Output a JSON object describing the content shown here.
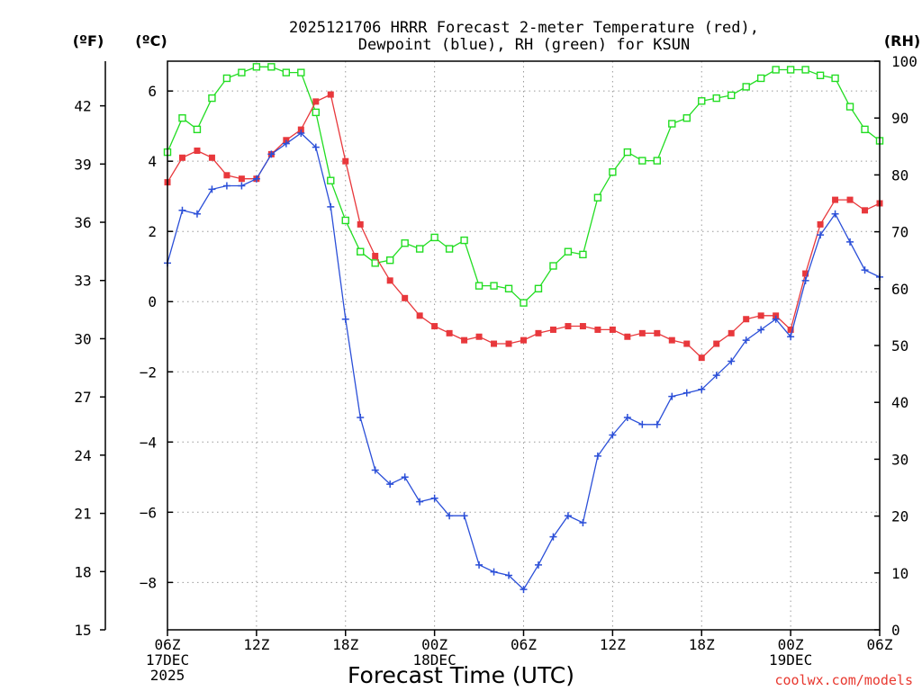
{
  "chart_data": {
    "type": "line",
    "title": "2025121706 HRRR Forecast 2-meter Temperature (red),",
    "subtitle": "Dewpoint (blue), RH (green) for KSUN",
    "xlabel": "Forecast Time (UTC)",
    "units": {
      "fahrenheit": "(ºF)",
      "celsius": "(ºC)",
      "rh": "(RH)"
    },
    "credit": "coolwx.com/models",
    "x_hours": [
      0,
      1,
      2,
      3,
      4,
      5,
      6,
      7,
      8,
      9,
      10,
      11,
      12,
      13,
      14,
      15,
      16,
      17,
      18,
      19,
      20,
      21,
      22,
      23,
      24,
      25,
      26,
      27,
      28,
      29,
      30,
      31,
      32,
      33,
      34,
      35,
      36,
      37,
      38,
      39,
      40,
      41,
      42,
      43,
      44,
      45,
      46,
      47,
      48
    ],
    "xlim": [
      0,
      48
    ],
    "x_ticks": [
      {
        "hour": 0,
        "lines": [
          "06Z",
          "17DEC",
          "2025"
        ]
      },
      {
        "hour": 6,
        "lines": [
          "12Z"
        ]
      },
      {
        "hour": 12,
        "lines": [
          "18Z"
        ]
      },
      {
        "hour": 18,
        "lines": [
          "00Z",
          "18DEC"
        ]
      },
      {
        "hour": 24,
        "lines": [
          "06Z"
        ]
      },
      {
        "hour": 30,
        "lines": [
          "12Z"
        ]
      },
      {
        "hour": 36,
        "lines": [
          "18Z"
        ]
      },
      {
        "hour": 42,
        "lines": [
          "00Z",
          "19DEC"
        ]
      },
      {
        "hour": 48,
        "lines": [
          "06Z"
        ]
      }
    ],
    "celsius_axis": {
      "ylim": [
        -9.35,
        6.85
      ],
      "ticks": [
        -8,
        -6,
        -4,
        -2,
        0,
        2,
        4,
        6
      ]
    },
    "fahrenheit_axis": {
      "ylim": [
        15,
        44.3
      ],
      "ticks": [
        15,
        18,
        21,
        24,
        27,
        30,
        33,
        36,
        39,
        42
      ]
    },
    "rh_axis": {
      "ylim": [
        0,
        100
      ],
      "ticks": [
        0,
        10,
        20,
        30,
        40,
        50,
        60,
        70,
        80,
        90,
        100
      ]
    },
    "series": [
      {
        "name": "Temperature",
        "units": "°C",
        "axis": "celsius",
        "color": "#e8383c",
        "marker": "filled-square",
        "values": [
          3.4,
          4.1,
          4.3,
          4.1,
          3.6,
          3.5,
          3.5,
          4.2,
          4.6,
          4.9,
          5.7,
          5.9,
          4.0,
          2.2,
          1.3,
          0.6,
          0.1,
          -0.4,
          -0.7,
          -0.9,
          -1.1,
          -1.0,
          -1.2,
          -1.2,
          -1.1,
          -0.9,
          -0.8,
          -0.7,
          -0.7,
          -0.8,
          -0.8,
          -1.0,
          -0.9,
          -0.9,
          -1.1,
          -1.2,
          -1.6,
          -1.2,
          -0.9,
          -0.5,
          -0.4,
          -0.4,
          -0.8,
          0.8,
          2.2,
          2.9,
          2.9,
          2.6,
          2.8
        ]
      },
      {
        "name": "Dewpoint",
        "units": "°C",
        "axis": "celsius",
        "color": "#2b4fd8",
        "marker": "plus",
        "values": [
          1.1,
          2.6,
          2.5,
          3.2,
          3.3,
          3.3,
          3.5,
          4.2,
          4.5,
          4.8,
          4.4,
          2.7,
          -0.5,
          -3.3,
          -4.8,
          -5.2,
          -5.0,
          -5.7,
          -5.6,
          -6.1,
          -6.1,
          -7.5,
          -7.7,
          -7.8,
          -8.2,
          -7.5,
          -6.7,
          -6.1,
          -6.3,
          -4.4,
          -3.8,
          -3.3,
          -3.5,
          -3.5,
          -2.7,
          -2.6,
          -2.5,
          -2.1,
          -1.7,
          -1.1,
          -0.8,
          -0.5,
          -1.0,
          0.6,
          1.9,
          2.5,
          1.7,
          0.9,
          0.7
        ]
      },
      {
        "name": "Relative Humidity",
        "units": "%",
        "axis": "rh",
        "color": "#22dd22",
        "marker": "open-square",
        "values": [
          84,
          90,
          88,
          93.5,
          97,
          98,
          99,
          99,
          98,
          98,
          91,
          79,
          72,
          66.5,
          64.5,
          65,
          68,
          67,
          69,
          67,
          68.5,
          60.5,
          60.5,
          60,
          57.5,
          60,
          64,
          66.5,
          66,
          76,
          80.5,
          84,
          82.5,
          82.5,
          89,
          90,
          93,
          93.5,
          94,
          95.5,
          97,
          98.5,
          98.5,
          98.5,
          97.5,
          97,
          92,
          88,
          86
        ]
      }
    ]
  }
}
